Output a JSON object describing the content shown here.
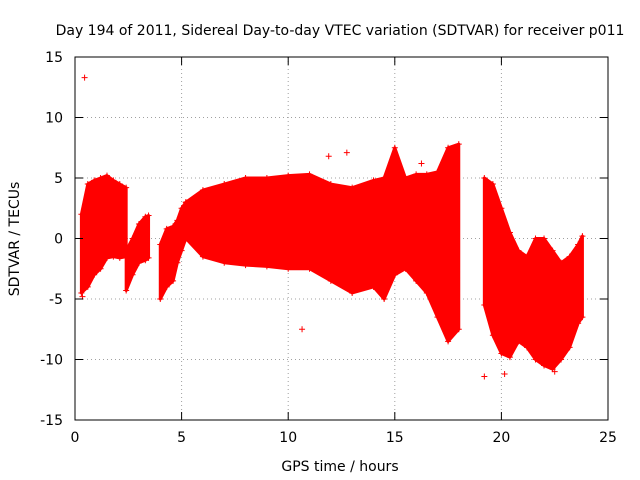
{
  "chart_data": {
    "type": "scatter",
    "title": "Day 194 of 2011, Sidereal Day-to-day VTEC variation (SDTVAR) for receiver p011",
    "xlabel": "GPS time / hours",
    "ylabel": "SDTVAR / TECUs",
    "xlim": [
      0,
      25
    ],
    "ylim": [
      -15,
      15
    ],
    "xticks": [
      0,
      5,
      10,
      15,
      20,
      25
    ],
    "yticks": [
      -15,
      -10,
      -5,
      0,
      5,
      10,
      15
    ],
    "grid": true,
    "marker": "+",
    "color": "#ff0000",
    "envelope": [
      {
        "segment": 1,
        "x": [
          0.3,
          0.6,
          0.9,
          1.2,
          1.5,
          1.8,
          2.1,
          2.4
        ],
        "upper": [
          2.0,
          4.5,
          4.8,
          5.0,
          5.2,
          4.8,
          4.5,
          4.2
        ],
        "lower": [
          -4.5,
          -4.0,
          -3.0,
          -2.5,
          -1.6,
          -1.5,
          -1.6,
          -1.5
        ]
      },
      {
        "segment": 2,
        "x": [
          2.4,
          2.7,
          3.0,
          3.3,
          3.45
        ],
        "upper": [
          -1.0,
          0.0,
          1.2,
          1.8,
          1.9
        ],
        "lower": [
          -4.3,
          -3.0,
          -2.0,
          -1.8,
          -1.6
        ]
      },
      {
        "segment": 3,
        "x": [
          4.0,
          4.3,
          4.6,
          4.8,
          5.0,
          5.2
        ],
        "upper": [
          -0.5,
          0.8,
          1.0,
          1.5,
          2.5,
          3.0
        ],
        "lower": [
          -5.0,
          -4.0,
          -3.5,
          -2.0,
          -1.0,
          0.0
        ]
      },
      {
        "segment": 4,
        "x": [
          5.2,
          6.0,
          7.0,
          8.0,
          9.0,
          10.0,
          11.0,
          12.0,
          13.0,
          14.0,
          14.5,
          15.0,
          15.5,
          16.0,
          16.5,
          17.0,
          17.5,
          18.0
        ],
        "upper": [
          3.0,
          4.0,
          4.5,
          5.0,
          5.0,
          5.2,
          5.3,
          4.5,
          4.2,
          4.8,
          5.0,
          7.5,
          5.0,
          5.3,
          5.3,
          5.5,
          7.5,
          7.8
        ],
        "lower": [
          0.0,
          -1.5,
          -2.0,
          -2.2,
          -2.3,
          -2.5,
          -2.5,
          -3.5,
          -4.5,
          -4.0,
          -5.0,
          -3.0,
          -2.5,
          -3.5,
          -4.5,
          -6.5,
          -8.5,
          -7.5
        ]
      },
      {
        "segment": 5,
        "x": [
          19.2,
          19.6,
          20.0,
          20.4,
          20.8,
          21.2,
          21.6,
          22.0,
          22.4,
          22.8,
          23.2,
          23.6,
          23.8
        ],
        "upper": [
          5.0,
          4.5,
          2.5,
          0.5,
          -1.0,
          -1.5,
          0.0,
          0.0,
          -1.0,
          -2.0,
          -1.5,
          -0.5,
          0.2
        ],
        "lower": [
          -5.5,
          -8.0,
          -9.5,
          -9.8,
          -8.5,
          -9.0,
          -10.0,
          -10.5,
          -10.8,
          -10.0,
          -9.0,
          -7.0,
          -6.5
        ]
      }
    ],
    "outliers": [
      {
        "x": 0.45,
        "y": 13.3
      },
      {
        "x": 0.35,
        "y": -4.8
      },
      {
        "x": 19.2,
        "y": -11.4
      },
      {
        "x": 20.15,
        "y": -11.2
      },
      {
        "x": 11.9,
        "y": 6.8
      },
      {
        "x": 12.75,
        "y": 7.1
      },
      {
        "x": 16.25,
        "y": 6.2
      },
      {
        "x": 10.65,
        "y": -7.5
      },
      {
        "x": 22.5,
        "y": -11.0
      }
    ]
  }
}
